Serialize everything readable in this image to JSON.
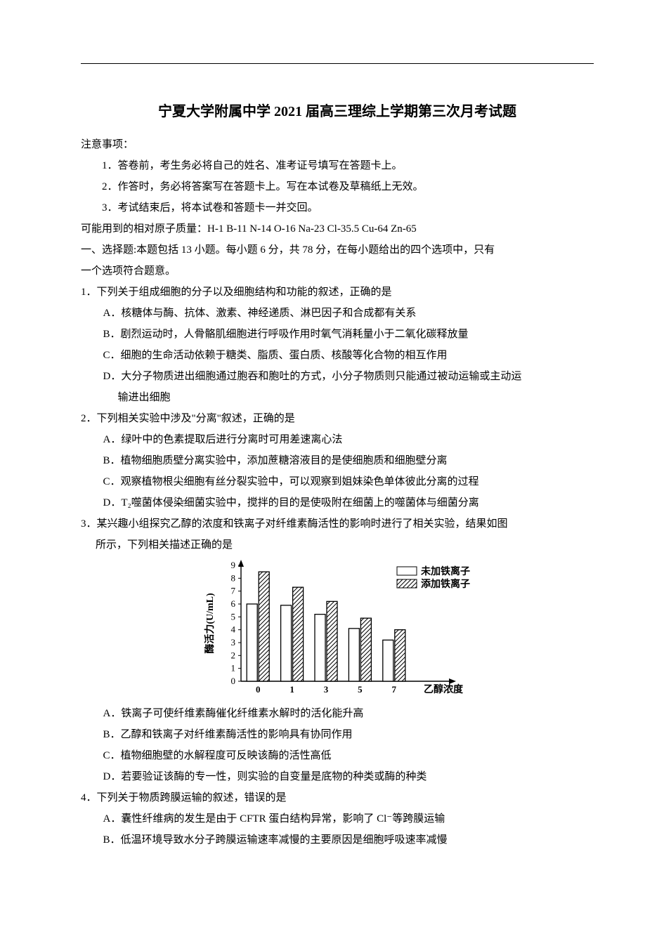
{
  "title": "宁夏大学附属中学 2021 届高三理综上学期第三次月考试题",
  "notice_header": "注意事项：",
  "notices": [
    "1．答卷前，考生务必将自己的姓名、准考证号填写在答题卡上。",
    "2．作答时，务必将答案写在答题卡上。写在本试卷及草稿纸上无效。",
    "3．考试结束后，将本试卷和答题卡一并交回。"
  ],
  "atomic_mass": "可能用到的相对原子质量：H-1  B-11  N-14  O-16  Na-23  Cl-35.5  Cu-64  Zn-65",
  "section1_line1": "一、选择题:本题包括 13 小题。每小题 6 分，共 78 分，在每小题给出的四个选项中，只有",
  "section1_line2": "一个选项符合题意。",
  "q1": {
    "stem": "1．下列关于组成细胞的分子以及细胞结构和功能的叙述，正确的是",
    "A": "A．核糖体与酶、抗体、激素、神经递质、淋巴因子和合成都有关系",
    "B": "B．剧烈运动时，人骨骼肌细胞进行呼吸作用时氧气消耗量小于二氧化碳释放量",
    "C": "C．细胞的生命活动依赖于糖类、脂质、蛋白质、核酸等化合物的相互作用",
    "D": "D．大分子物质进出细胞通过胞吞和胞吐的方式，小分子物质则只能通过被动运输或主动运",
    "D2": "输进出细胞"
  },
  "q2": {
    "stem": "2．下列相关实验中涉及\"分离\"叙述，正确的是",
    "A": "A．绿叶中的色素提取后进行分离时可用差速离心法",
    "B": "B．植物细胞质壁分离实验中，添加蔗糖溶液目的是使细胞质和细胞壁分离",
    "C": "C．观察植物根尖细胞有丝分裂实验中，可以观察到姐妹染色单体彼此分离的过程",
    "D": "D．T₂噬菌体侵染细菌实验中，搅拌的目的是使吸附在细菌上的噬菌体与细菌分离"
  },
  "q3": {
    "stem1": "3．某兴趣小组探究乙醇的浓度和铁离子对纤维素酶活性的影响时进行了相关实验，结果如图",
    "stem2": "所示，下列相关描述正确的是",
    "A": "A．铁离子可使纤维素酶催化纤维素水解时的活化能升高",
    "B": "B．乙醇和铁离子对纤维素酶活性的影响具有协同作用",
    "C": "C．植物细胞壁的水解程度可反映该酶的活性高低",
    "D": "D．若要验证该酶的专一性，则实验的自变量是底物的种类或酶的种类"
  },
  "q4": {
    "stem": "4．下列关于物质跨膜运输的叙述，错误的是",
    "A": "A．囊性纤维病的发生是由于 CFTR 蛋白结构异常，影响了 Cl⁻等跨膜运输",
    "B": "B．低温环境导致水分子跨膜运输速率减慢的主要原因是细胞呼吸速率减慢"
  },
  "chart": {
    "type": "bar",
    "y_label": "酶活力(U/mL)",
    "x_label": "乙醇浓度",
    "x_ticks": [
      "0",
      "1",
      "3",
      "5",
      "7"
    ],
    "y_max": 9,
    "y_tick_step": 1,
    "legend": {
      "plain": "未加铁离子",
      "hatched": "添加铁离子"
    },
    "series_plain": [
      6.0,
      5.9,
      5.2,
      4.1,
      3.2
    ],
    "series_hatched": [
      8.5,
      7.3,
      6.2,
      4.9,
      4.0
    ],
    "bar_fill_plain": "#ffffff",
    "bar_fill_hatched_pattern": true,
    "stroke": "#000000",
    "bg": "#ffffff",
    "legend_font_size": 14,
    "axis_font_size": 13,
    "label_font_size": 14
  }
}
